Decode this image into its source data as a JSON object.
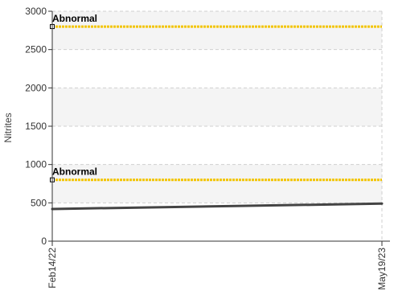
{
  "chart_data": {
    "type": "line",
    "ylabel": "Nitrites",
    "ylim": [
      0,
      3000
    ],
    "yticks": [
      0,
      500,
      1000,
      1500,
      2000,
      2500,
      3000
    ],
    "xticks": [
      "Feb14/22",
      "May19/23"
    ],
    "x": [
      "Feb14/22",
      "May19/23"
    ],
    "series": [
      {
        "values": [
          420,
          490
        ]
      }
    ],
    "reference_lines": [
      {
        "label": "Abnormal",
        "value": 2800
      },
      {
        "label": "Abnormal",
        "value": 800
      }
    ],
    "band_ranges": [
      [
        500,
        1000
      ],
      [
        1500,
        2000
      ],
      [
        2500,
        3000
      ]
    ],
    "grid": true
  },
  "colors": {
    "band": "#f4f4f4",
    "grid": "#cfcfcf",
    "axis": "#333333",
    "line": "#444444",
    "reference": "#f2c400"
  }
}
